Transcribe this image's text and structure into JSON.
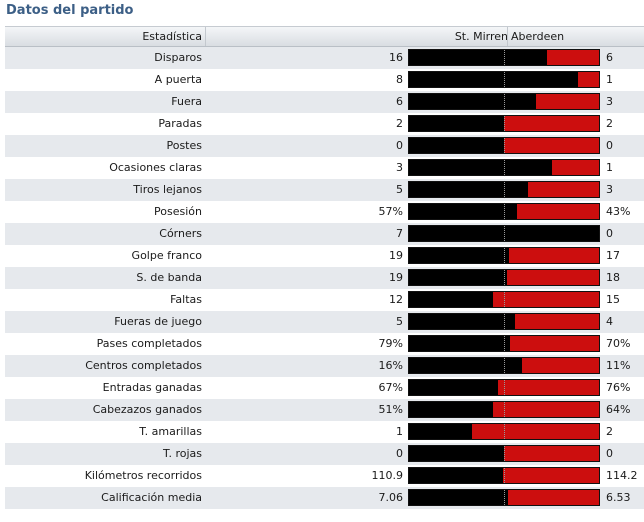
{
  "title": "Datos del partido",
  "header": {
    "stat": "Estadística",
    "home": "St. Mirren",
    "away": "Aberdeen"
  },
  "colors": {
    "home": "#000000",
    "away": "#cc0e0e",
    "title": "#3c5f86"
  },
  "rows": [
    {
      "label": "Disparos",
      "home": "16",
      "away": "6",
      "home_share": 0.727
    },
    {
      "label": "A puerta",
      "home": "8",
      "away": "1",
      "home_share": 0.889
    },
    {
      "label": "Fuera",
      "home": "6",
      "away": "3",
      "home_share": 0.667
    },
    {
      "label": "Paradas",
      "home": "2",
      "away": "2",
      "home_share": 0.5
    },
    {
      "label": "Postes",
      "home": "0",
      "away": "0",
      "home_share": 0.5
    },
    {
      "label": "Ocasiones claras",
      "home": "3",
      "away": "1",
      "home_share": 0.75
    },
    {
      "label": "Tiros lejanos",
      "home": "5",
      "away": "3",
      "home_share": 0.625
    },
    {
      "label": "Posesión",
      "home": "57%",
      "away": "43%",
      "home_share": 0.57
    },
    {
      "label": "Córners",
      "home": "7",
      "away": "0",
      "home_share": 1.0
    },
    {
      "label": "Golpe franco",
      "home": "19",
      "away": "17",
      "home_share": 0.528
    },
    {
      "label": "S. de banda",
      "home": "19",
      "away": "18",
      "home_share": 0.514
    },
    {
      "label": "Faltas",
      "home": "12",
      "away": "15",
      "home_share": 0.444
    },
    {
      "label": "Fueras de juego",
      "home": "5",
      "away": "4",
      "home_share": 0.556
    },
    {
      "label": "Pases completados",
      "home": "79%",
      "away": "70%",
      "home_share": 0.53
    },
    {
      "label": "Centros completados",
      "home": "16%",
      "away": "11%",
      "home_share": 0.593
    },
    {
      "label": "Entradas ganadas",
      "home": "67%",
      "away": "76%",
      "home_share": 0.469
    },
    {
      "label": "Cabezazos ganados",
      "home": "51%",
      "away": "64%",
      "home_share": 0.444
    },
    {
      "label": "T. amarillas",
      "home": "1",
      "away": "2",
      "home_share": 0.333
    },
    {
      "label": "T. rojas",
      "home": "0",
      "away": "0",
      "home_share": 0.5
    },
    {
      "label": "Kilómetros recorridos",
      "home": "110.9",
      "away": "114.2",
      "home_share": 0.493
    },
    {
      "label": "Calificación media",
      "home": "7.06",
      "away": "6.53",
      "home_share": 0.519
    }
  ]
}
